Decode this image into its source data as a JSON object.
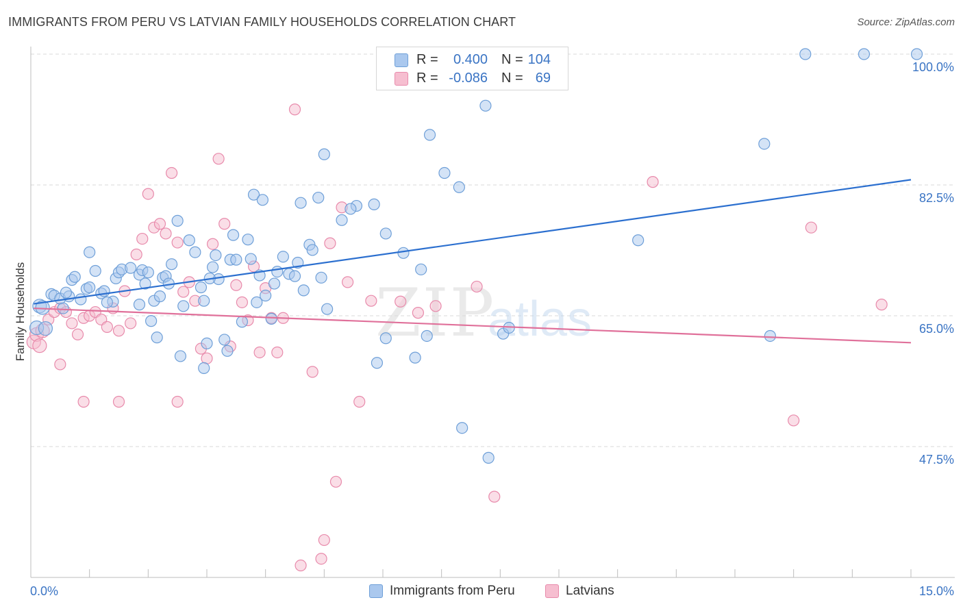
{
  "title": "IMMIGRANTS FROM PERU VS LATVIAN FAMILY HOUSEHOLDS CORRELATION CHART",
  "source": "Source: ZipAtlas.com",
  "watermark": {
    "zip": "ZIP",
    "atlas": "atlas"
  },
  "legend_top": [
    {
      "r_label": "R =",
      "r_value": "0.400",
      "n_label": "N =",
      "n_value": "104"
    },
    {
      "r_label": "R =",
      "r_value": "-0.086",
      "n_label": "N =",
      "n_value": "69"
    }
  ],
  "legend_bottom": {
    "peru": "Immigrants from Peru",
    "latvians": "Latvians"
  },
  "colors": {
    "peru_fill": "#aac8ee",
    "peru_stroke": "#6e9fd8",
    "peru_line": "#2b6fcf",
    "latv_fill": "#f6bed0",
    "latv_stroke": "#e88aab",
    "latv_line": "#e0709a",
    "tick_label": "#3a74c4",
    "grid": "#d9d9d9"
  },
  "chart_data": {
    "type": "scatter",
    "title": "IMMIGRANTS FROM PERU VS LATVIAN FAMILY HOUSEHOLDS CORRELATION CHART",
    "xlabel": "",
    "ylabel": "Family Households",
    "xlim": [
      0,
      15
    ],
    "ylim": [
      30,
      100
    ],
    "x_tick_labels": [
      {
        "value": 0,
        "label": "0.0%"
      },
      {
        "value": 15,
        "label": "15.0%"
      }
    ],
    "y_ticks": [
      {
        "value": 47.5,
        "label": "47.5%"
      },
      {
        "value": 65.0,
        "label": "65.0%"
      },
      {
        "value": 82.5,
        "label": "82.5%"
      },
      {
        "value": 100.0,
        "label": "100.0%"
      }
    ],
    "grid": "horizontal dashed",
    "legend": "top-center",
    "series": [
      {
        "name": "Immigrants from Peru",
        "color": "#6e9fd8",
        "trend": {
          "x": [
            0.05,
            15.0
          ],
          "y": [
            66.6,
            83.2
          ]
        },
        "points": [
          [
            0.1,
            63.4
          ],
          [
            0.15,
            66.3
          ],
          [
            0.2,
            66.1
          ],
          [
            0.25,
            63.3
          ],
          [
            0.35,
            67.9
          ],
          [
            0.4,
            67.7
          ],
          [
            0.5,
            67.3
          ],
          [
            0.55,
            66.0
          ],
          [
            0.65,
            67.6
          ],
          [
            0.7,
            69.8
          ],
          [
            0.75,
            70.2
          ],
          [
            0.85,
            67.2
          ],
          [
            0.95,
            68.6
          ],
          [
            1.0,
            68.8
          ],
          [
            1.1,
            71.0
          ],
          [
            1.2,
            68.0
          ],
          [
            1.25,
            68.3
          ],
          [
            1.4,
            66.9
          ],
          [
            1.45,
            70.0
          ],
          [
            1.5,
            70.8
          ],
          [
            1.55,
            71.2
          ],
          [
            1.7,
            71.4
          ],
          [
            1.85,
            70.5
          ],
          [
            1.9,
            71.1
          ],
          [
            1.95,
            69.3
          ],
          [
            2.05,
            64.3
          ],
          [
            2.1,
            67.0
          ],
          [
            2.2,
            67.6
          ],
          [
            2.25,
            70.1
          ],
          [
            2.3,
            70.3
          ],
          [
            2.4,
            71.9
          ],
          [
            2.5,
            77.7
          ],
          [
            2.55,
            59.6
          ],
          [
            2.6,
            66.3
          ],
          [
            2.7,
            75.1
          ],
          [
            2.8,
            73.5
          ],
          [
            2.9,
            68.8
          ],
          [
            2.95,
            67.0
          ],
          [
            3.0,
            61.3
          ],
          [
            3.1,
            71.5
          ],
          [
            3.2,
            69.9
          ],
          [
            3.3,
            61.8
          ],
          [
            3.4,
            72.5
          ],
          [
            3.5,
            72.5
          ],
          [
            3.45,
            75.8
          ],
          [
            3.7,
            75.2
          ],
          [
            3.6,
            64.2
          ],
          [
            3.75,
            72.6
          ],
          [
            3.85,
            66.8
          ],
          [
            3.9,
            70.4
          ],
          [
            4.0,
            67.7
          ],
          [
            4.1,
            64.6
          ],
          [
            4.15,
            69.3
          ],
          [
            4.2,
            70.9
          ],
          [
            4.3,
            72.9
          ],
          [
            4.4,
            70.6
          ],
          [
            4.5,
            70.3
          ],
          [
            4.55,
            72.1
          ],
          [
            4.65,
            68.4
          ],
          [
            4.75,
            74.5
          ],
          [
            4.8,
            73.8
          ],
          [
            4.95,
            70.1
          ],
          [
            5.05,
            65.9
          ],
          [
            5.3,
            77.8
          ],
          [
            5.55,
            79.7
          ],
          [
            5.85,
            79.9
          ],
          [
            6.05,
            76.0
          ],
          [
            6.35,
            73.4
          ],
          [
            6.65,
            71.2
          ],
          [
            6.75,
            62.3
          ],
          [
            7.05,
            84.1
          ],
          [
            7.3,
            82.2
          ],
          [
            7.35,
            50.0
          ],
          [
            7.8,
            46.0
          ],
          [
            8.05,
            62.6
          ],
          [
            8.15,
            63.4
          ],
          [
            10.35,
            75.1
          ],
          [
            12.5,
            88.0
          ],
          [
            12.6,
            62.3
          ],
          [
            13.2,
            100.0
          ],
          [
            14.2,
            100.0
          ],
          [
            15.1,
            100.0
          ],
          [
            1.0,
            73.5
          ],
          [
            3.8,
            81.2
          ],
          [
            3.95,
            80.5
          ],
          [
            4.9,
            80.8
          ],
          [
            5.0,
            86.6
          ],
          [
            5.45,
            79.3
          ],
          [
            6.8,
            89.2
          ],
          [
            7.75,
            93.1
          ],
          [
            1.85,
            66.5
          ],
          [
            2.15,
            62.1
          ],
          [
            2.95,
            58.0
          ],
          [
            3.15,
            73.1
          ],
          [
            3.35,
            60.3
          ],
          [
            5.9,
            58.7
          ],
          [
            6.55,
            59.4
          ],
          [
            2.35,
            69.3
          ],
          [
            4.6,
            80.1
          ],
          [
            6.05,
            62.0
          ],
          [
            0.6,
            68.1
          ],
          [
            1.3,
            66.8
          ],
          [
            2.0,
            70.8
          ],
          [
            3.05,
            70.0
          ]
        ]
      },
      {
        "name": "Latvians",
        "color": "#e88aab",
        "trend": {
          "x": [
            0.05,
            15.0
          ],
          "y": [
            66.0,
            61.4
          ]
        },
        "points": [
          [
            0.05,
            61.5
          ],
          [
            0.1,
            62.5
          ],
          [
            0.15,
            61.0
          ],
          [
            0.2,
            63.0
          ],
          [
            0.3,
            64.5
          ],
          [
            0.4,
            65.5
          ],
          [
            0.5,
            66.0
          ],
          [
            0.6,
            65.5
          ],
          [
            0.7,
            64.0
          ],
          [
            0.8,
            62.5
          ],
          [
            0.9,
            64.7
          ],
          [
            1.0,
            65.0
          ],
          [
            1.1,
            65.5
          ],
          [
            1.2,
            64.5
          ],
          [
            1.3,
            63.5
          ],
          [
            1.4,
            66.0
          ],
          [
            1.5,
            63.0
          ],
          [
            1.6,
            68.3
          ],
          [
            1.7,
            64.0
          ],
          [
            1.8,
            73.2
          ],
          [
            1.9,
            75.3
          ],
          [
            2.0,
            81.3
          ],
          [
            2.1,
            76.8
          ],
          [
            2.2,
            77.3
          ],
          [
            2.3,
            76.0
          ],
          [
            2.4,
            84.1
          ],
          [
            2.5,
            74.8
          ],
          [
            2.6,
            68.2
          ],
          [
            2.7,
            69.5
          ],
          [
            2.8,
            67.0
          ],
          [
            2.9,
            60.6
          ],
          [
            3.0,
            59.3
          ],
          [
            3.1,
            74.6
          ],
          [
            3.2,
            86.0
          ],
          [
            3.3,
            77.3
          ],
          [
            3.4,
            60.9
          ],
          [
            3.5,
            69.1
          ],
          [
            3.6,
            66.8
          ],
          [
            3.7,
            64.4
          ],
          [
            3.8,
            71.6
          ],
          [
            3.9,
            60.1
          ],
          [
            4.0,
            68.7
          ],
          [
            4.1,
            64.7
          ],
          [
            4.2,
            60.1
          ],
          [
            4.3,
            64.7
          ],
          [
            4.5,
            92.6
          ],
          [
            4.8,
            57.5
          ],
          [
            5.1,
            74.7
          ],
          [
            5.3,
            79.5
          ],
          [
            5.4,
            69.5
          ],
          [
            5.6,
            53.5
          ],
          [
            5.8,
            67.0
          ],
          [
            6.3,
            66.9
          ],
          [
            6.6,
            65.4
          ],
          [
            6.9,
            66.3
          ],
          [
            7.6,
            68.9
          ],
          [
            7.9,
            40.8
          ],
          [
            10.6,
            82.9
          ],
          [
            13.3,
            76.8
          ],
          [
            13.0,
            51.0
          ],
          [
            14.5,
            66.5
          ],
          [
            0.5,
            58.5
          ],
          [
            1.5,
            53.5
          ],
          [
            0.9,
            53.5
          ],
          [
            2.5,
            53.5
          ],
          [
            5.2,
            42.8
          ],
          [
            5.0,
            35.0
          ],
          [
            4.95,
            32.5
          ],
          [
            4.6,
            31.6
          ]
        ]
      }
    ]
  }
}
